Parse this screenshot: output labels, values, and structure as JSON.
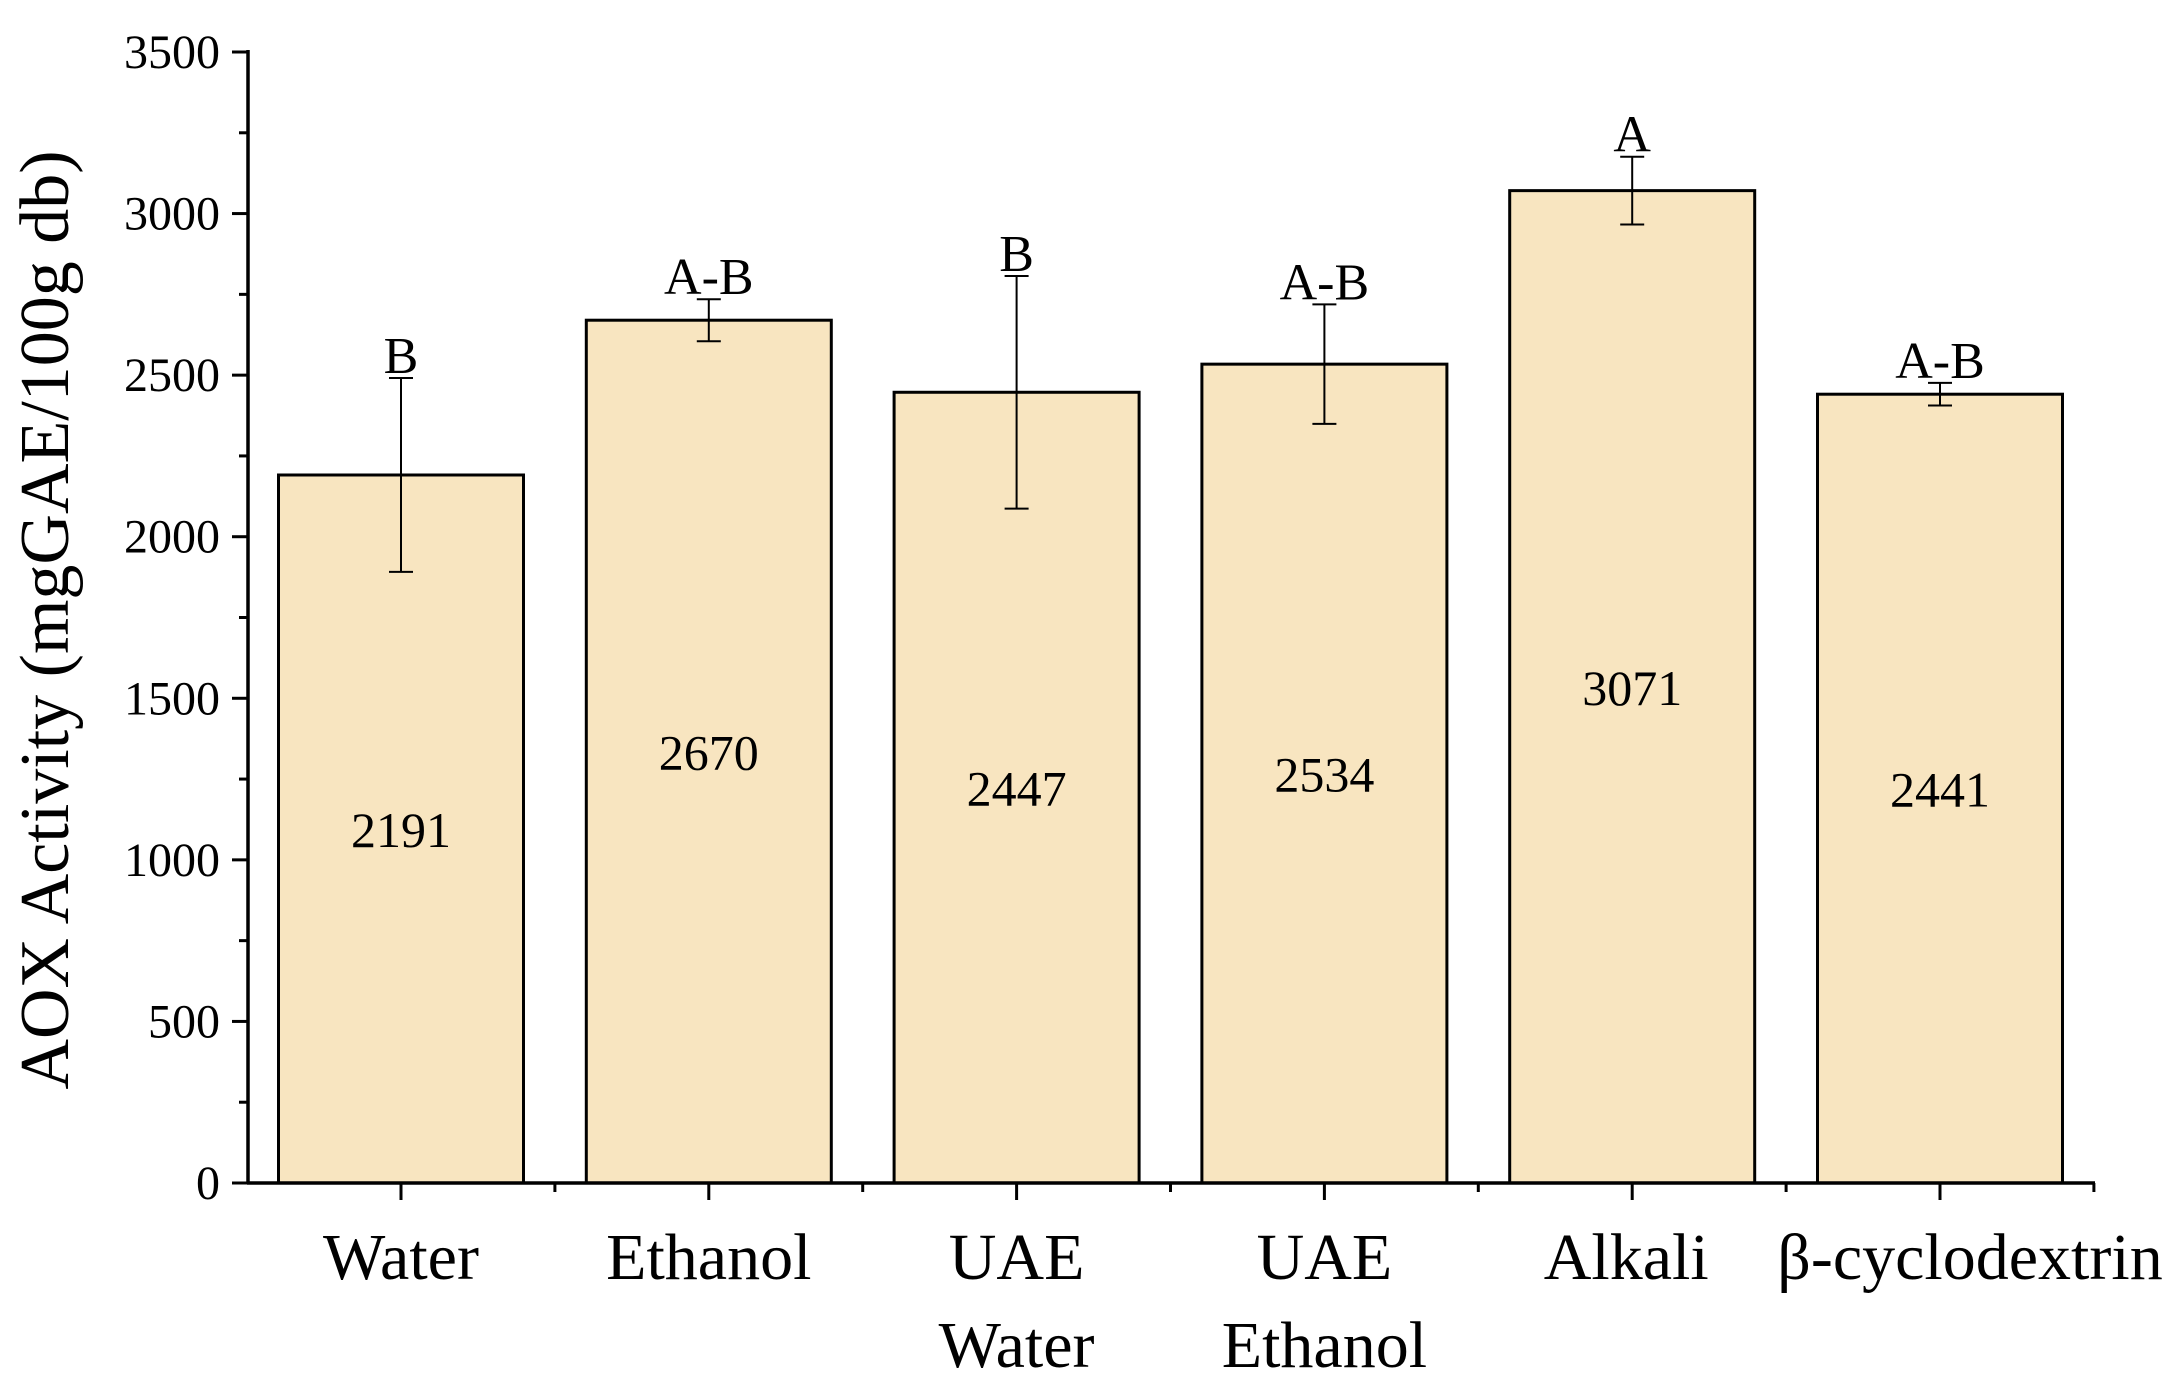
{
  "chart_data": {
    "type": "bar",
    "title": "",
    "xlabel": "",
    "ylabel": "AOX Activity (mgGAE/100g db)",
    "ylim": [
      0,
      3500
    ],
    "yticks": [
      0,
      500,
      1000,
      1500,
      2000,
      2500,
      3000,
      3500
    ],
    "ytick_labels": [
      "0",
      "500",
      "1000",
      "1500",
      "2000",
      "2500",
      "3000",
      "3500"
    ],
    "grid": false,
    "legend": "none",
    "bar_color": "#f8e5c0",
    "edge_color": "#000000",
    "categories": [
      [
        "Water"
      ],
      [
        "Ethanol"
      ],
      [
        "UAE",
        "Water"
      ],
      [
        "UAE",
        "Ethanol"
      ],
      [
        "Alkali"
      ],
      [
        "β-cyclodextrin"
      ]
    ],
    "values": [
      2191,
      2670,
      2447,
      2534,
      3071,
      2441
    ],
    "value_labels": [
      "2191",
      "2670",
      "2447",
      "2534",
      "3071",
      "2441"
    ],
    "error": [
      300,
      65,
      360,
      185,
      105,
      35
    ],
    "significance_letters": [
      "B",
      "A-B",
      "B",
      "A-B",
      "A",
      "A-B"
    ]
  }
}
